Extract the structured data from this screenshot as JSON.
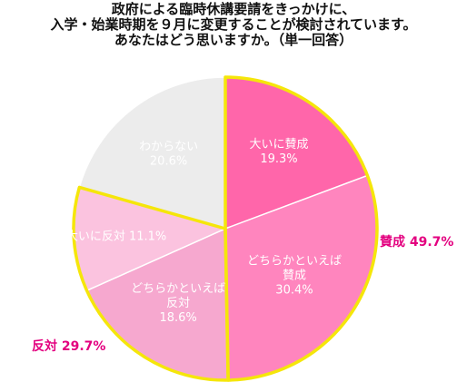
{
  "title_lines": [
    "政府による臨時休講要請をきっかけに、",
    "入学・始業時期を９月に変更することが検討されています。",
    "あなたはどう思いますか。（単一回答）"
  ],
  "chart_data": {
    "type": "pie",
    "title": "政府による臨時休講要請をきっかけに、入学・始業時期を９月に変更することが検討されています。あなたはどう思いますか。（単一回答）",
    "start": "12 o'clock, clockwise",
    "slices": [
      {
        "label": "大いに賛成",
        "value": 19.3,
        "value_text": "19.3%",
        "color": "#ff66aa",
        "text_color": "#ffffff"
      },
      {
        "label": "どちらかといえば賛成",
        "value": 30.4,
        "value_text": "30.4%",
        "color": "#ff85be",
        "text_color": "#ffffff"
      },
      {
        "label": "どちらかといえば反対",
        "value": 18.6,
        "value_text": "18.6%",
        "color": "#f6a8cf",
        "text_color": "#ffffff"
      },
      {
        "label": "大いに反対",
        "value": 11.1,
        "value_text": "11.1%",
        "color": "#fbc3df",
        "text_color": "#ffffff"
      },
      {
        "label": "わからない",
        "value": 20.6,
        "value_text": "20.6%",
        "color": "#ececec",
        "text_color": "#222222"
      }
    ],
    "groups": [
      {
        "label": "賛成 49.7%",
        "color": "#e3007f"
      },
      {
        "label": "反対 29.7%",
        "color": "#e3007f"
      }
    ],
    "highlight_outline_color": "#f5e60a"
  }
}
